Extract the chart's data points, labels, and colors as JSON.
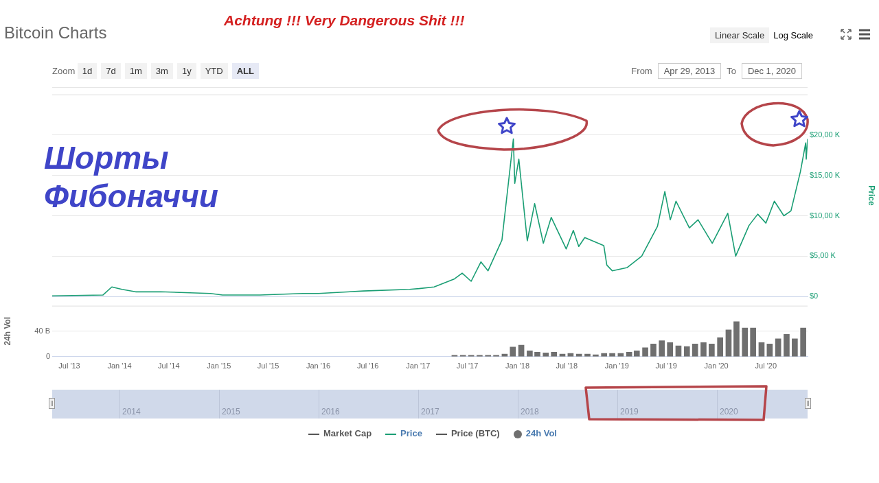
{
  "chart_data": [
    {
      "type": "line",
      "title": "Bitcoin Charts",
      "ylabel": "Price",
      "annotations": [
        "Achtung !!! Very Dangerous Shit !!!",
        "Шорты Фибоначчи",
        "Zoom",
        "1d",
        "7d",
        "1m",
        "3m",
        "1y",
        "YTD",
        "ALL",
        "From",
        "Apr 29, 2013",
        "To",
        "Dec 1, 2020",
        "Linear Scale",
        "Log Scale",
        "Market Cap",
        "Price (BTC)",
        "2014",
        "2015",
        "2016",
        "2017",
        "2018",
        "2019",
        "2020"
      ],
      "xlim": [
        "2013-04-29",
        "2020-12-01"
      ],
      "ylim": [
        0,
        25000
      ],
      "yticks": [
        {
          "value": 0,
          "label": "$0"
        },
        {
          "value": 5000,
          "label": "$5,00 K"
        },
        {
          "value": 10000,
          "label": "$10,00 K"
        },
        {
          "value": 15000,
          "label": "$15,00 K"
        },
        {
          "value": 20000,
          "label": "$20,00 K"
        }
      ],
      "grid": "y",
      "tick_labels": "y",
      "legend": "bottom",
      "marker": "none",
      "series": [
        {
          "name": "Price",
          "color": "#1a9e74",
          "x": [
            "2013-04-29",
            "2013-11-01",
            "2013-12-04",
            "2014-01-10",
            "2014-03-01",
            "2014-06-01",
            "2014-12-01",
            "2015-01-14",
            "2015-06-01",
            "2015-11-05",
            "2016-01-01",
            "2016-06-15",
            "2016-12-01",
            "2017-01-05",
            "2017-03-01",
            "2017-05-15",
            "2017-06-12",
            "2017-07-15",
            "2017-08-20",
            "2017-09-15",
            "2017-11-05",
            "2017-12-17",
            "2017-12-22",
            "2018-01-06",
            "2018-02-06",
            "2018-03-05",
            "2018-04-06",
            "2018-05-05",
            "2018-06-29",
            "2018-07-25",
            "2018-08-14",
            "2018-09-05",
            "2018-11-14",
            "2018-11-25",
            "2018-12-15",
            "2019-02-08",
            "2019-04-02",
            "2019-05-30",
            "2019-06-26",
            "2019-07-16",
            "2019-08-06",
            "2019-09-24",
            "2019-10-26",
            "2019-12-17",
            "2020-02-12",
            "2020-03-12",
            "2020-04-30",
            "2020-06-01",
            "2020-07-01",
            "2020-08-01",
            "2020-09-05",
            "2020-10-01",
            "2020-11-05",
            "2020-11-24",
            "2020-11-26",
            "2020-12-01"
          ],
          "values": [
            100,
            200,
            1200,
            900,
            600,
            600,
            400,
            200,
            200,
            400,
            400,
            700,
            900,
            1000,
            1200,
            2200,
            2900,
            1900,
            4300,
            3200,
            7000,
            19500,
            14000,
            17000,
            6900,
            11500,
            6600,
            9800,
            5900,
            8200,
            6200,
            7300,
            6300,
            3900,
            3200,
            3600,
            5000,
            8700,
            13000,
            9500,
            11800,
            8500,
            9500,
            6600,
            10300,
            5000,
            8800,
            10200,
            9100,
            11800,
            10000,
            10600,
            15500,
            19000,
            17000,
            19500
          ]
        }
      ]
    },
    {
      "type": "bar",
      "ylabel": "24h Vol",
      "xlim": [
        "2013-04-29",
        "2020-12-01"
      ],
      "ylim": [
        0,
        80
      ],
      "yticks": [
        0,
        {
          "value": 40,
          "label": "40 B"
        }
      ],
      "xticks": [
        {
          "value": "2013-07-01",
          "label": "Jul '13"
        },
        {
          "value": "2014-01-01",
          "label": "Jan '14"
        },
        {
          "value": "2014-07-01",
          "label": "Jul '14"
        },
        {
          "value": "2015-01-01",
          "label": "Jan '15"
        },
        {
          "value": "2015-07-01",
          "label": "Jul '15"
        },
        {
          "value": "2016-01-01",
          "label": "Jan '16"
        },
        {
          "value": "2016-07-01",
          "label": "Jul '16"
        },
        {
          "value": "2017-01-01",
          "label": "Jan '17"
        },
        {
          "value": "2017-07-01",
          "label": "Jul '17"
        },
        {
          "value": "2018-01-01",
          "label": "Jan '18"
        },
        {
          "value": "2018-07-01",
          "label": "Jul '18"
        },
        {
          "value": "2019-01-01",
          "label": "Jan '19"
        },
        {
          "value": "2019-07-01",
          "label": "Jul '19"
        },
        {
          "value": "2020-01-01",
          "label": "Jan '20"
        },
        {
          "value": "2020-07-01",
          "label": "Jul '20"
        }
      ],
      "grid": "y",
      "legend": "bottom",
      "series": [
        {
          "name": "24h Vol",
          "color": "#6f6f6f",
          "x": [
            "2017-05-15",
            "2017-06-15",
            "2017-07-15",
            "2017-08-15",
            "2017-09-15",
            "2017-10-15",
            "2017-11-15",
            "2017-12-15",
            "2018-01-15",
            "2018-02-15",
            "2018-03-15",
            "2018-04-15",
            "2018-05-15",
            "2018-06-15",
            "2018-07-15",
            "2018-08-15",
            "2018-09-15",
            "2018-10-15",
            "2018-11-15",
            "2018-12-15",
            "2019-01-15",
            "2019-02-15",
            "2019-03-15",
            "2019-04-15",
            "2019-05-15",
            "2019-06-15",
            "2019-07-15",
            "2019-08-15",
            "2019-09-15",
            "2019-10-15",
            "2019-11-15",
            "2019-12-15",
            "2020-01-15",
            "2020-02-15",
            "2020-03-15",
            "2020-04-15",
            "2020-05-15",
            "2020-06-15",
            "2020-07-15",
            "2020-08-15",
            "2020-09-15",
            "2020-10-15",
            "2020-11-15"
          ],
          "values": [
            2,
            2,
            2,
            2,
            2,
            2,
            4,
            15,
            18,
            9,
            7,
            6,
            7,
            4,
            5,
            4,
            4,
            3,
            5,
            5,
            5,
            7,
            9,
            14,
            20,
            25,
            22,
            17,
            16,
            20,
            22,
            20,
            30,
            42,
            55,
            45,
            45,
            22,
            20,
            28,
            35,
            28,
            45
          ]
        }
      ]
    }
  ]
}
